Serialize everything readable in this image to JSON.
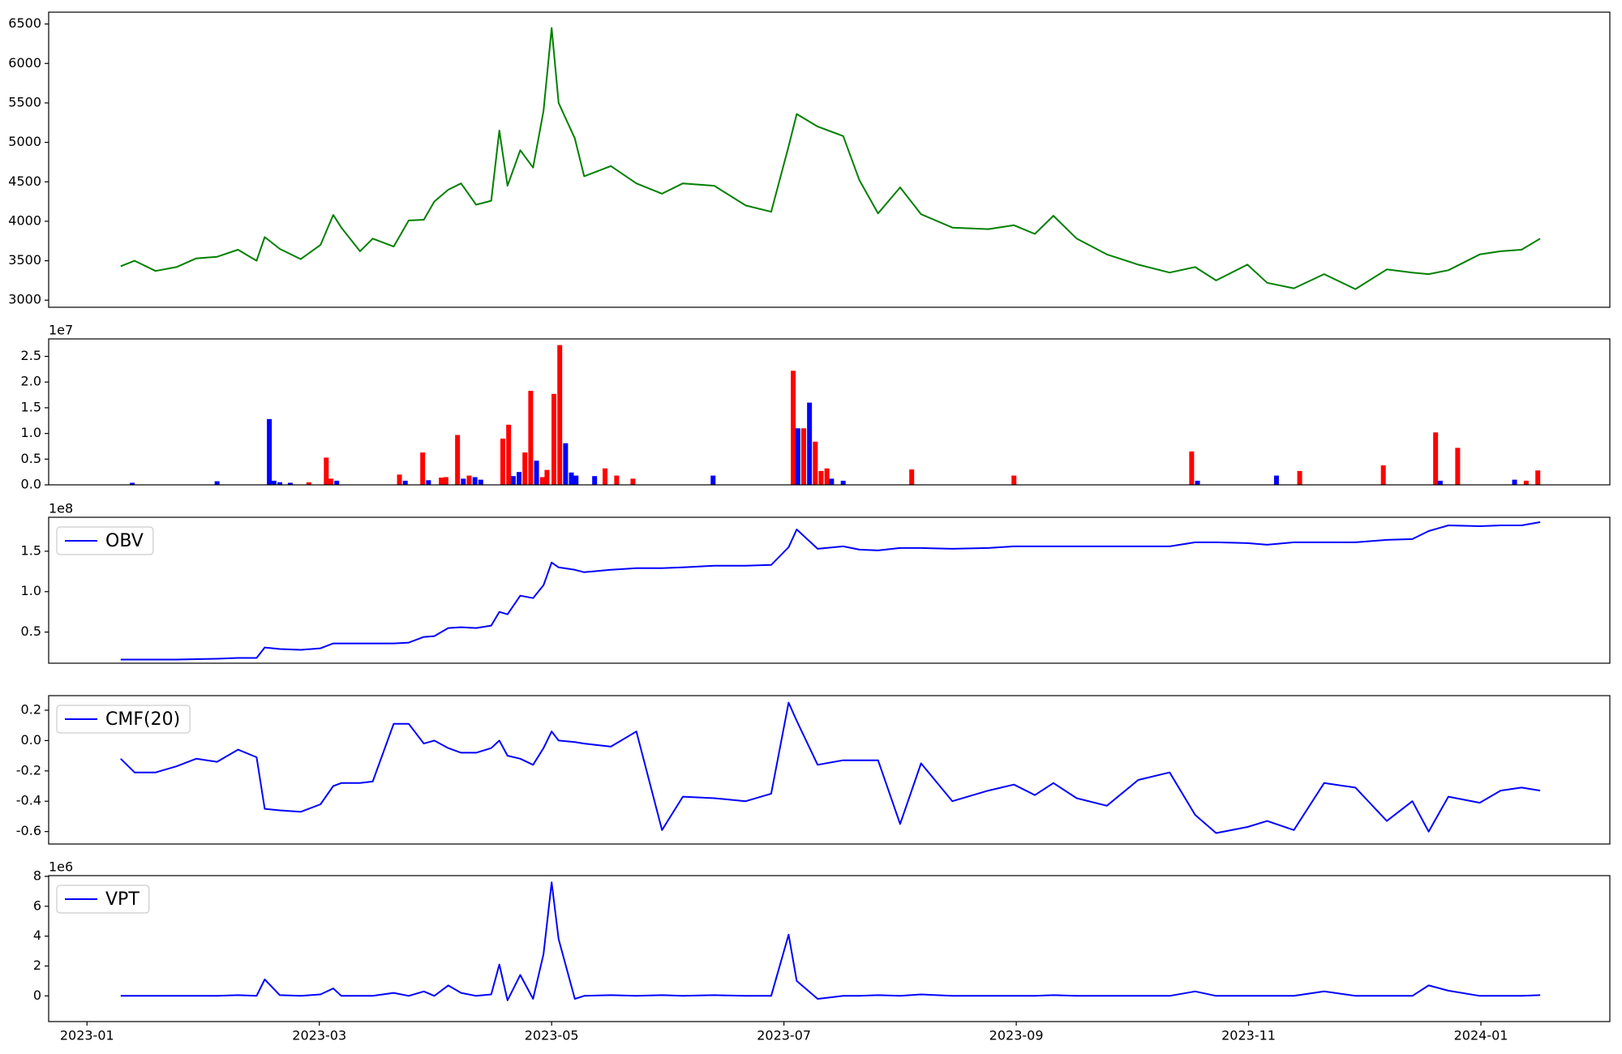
{
  "chart_data": [
    {
      "type": "line",
      "color": "green",
      "x": [
        0.29,
        0.41,
        0.59,
        0.77,
        0.94,
        1.12,
        1.3,
        1.46,
        1.53,
        1.66,
        1.84,
        2.01,
        2.12,
        2.19,
        2.35,
        2.46,
        2.64,
        2.77,
        2.9,
        2.99,
        3.11,
        3.22,
        3.35,
        3.48,
        3.55,
        3.62,
        3.73,
        3.84,
        3.93,
        4.0,
        4.06,
        4.2,
        4.28,
        4.51,
        4.73,
        4.95,
        5.13,
        5.4,
        5.67,
        5.89,
        6.04,
        6.11,
        6.29,
        6.51,
        6.65,
        6.81,
        7.0,
        7.18,
        7.45,
        7.76,
        7.98,
        8.16,
        8.32,
        8.52,
        8.78,
        9.05,
        9.32,
        9.54,
        9.72,
        9.99,
        10.16,
        10.39,
        10.65,
        10.92,
        11.19,
        11.41,
        11.55,
        11.72,
        11.99,
        12.17,
        12.35,
        12.51
      ],
      "values": [
        3430,
        3500,
        3370,
        3420,
        3530,
        3550,
        3640,
        3500,
        3800,
        3650,
        3520,
        3700,
        4080,
        3920,
        3620,
        3780,
        3680,
        4010,
        4020,
        4250,
        4400,
        4480,
        4210,
        4260,
        5150,
        4450,
        4900,
        4680,
        5400,
        6450,
        5500,
        5050,
        4570,
        4700,
        4480,
        4350,
        4480,
        4450,
        4200,
        4120,
        4950,
        5360,
        5200,
        5080,
        4520,
        4100,
        4430,
        4090,
        3920,
        3900,
        3950,
        3840,
        4070,
        3780,
        3580,
        3450,
        3350,
        3420,
        3250,
        3450,
        3220,
        3150,
        3330,
        3140,
        3390,
        3350,
        3330,
        3380,
        3580,
        3620,
        3640,
        3780
      ],
      "xlim": [
        -0.33,
        13.11
      ],
      "ylim": [
        2910,
        6650
      ],
      "yticks": [
        3000,
        3500,
        4000,
        4500,
        5000,
        5500,
        6000,
        6500
      ]
    },
    {
      "type": "bar",
      "offset_label": "1e7",
      "x": [
        0.39,
        1.12,
        1.57,
        1.61,
        1.66,
        1.75,
        1.91,
        2.06,
        2.1,
        2.15,
        2.69,
        2.74,
        2.89,
        2.94,
        3.05,
        3.09,
        3.19,
        3.24,
        3.29,
        3.34,
        3.39,
        3.58,
        3.63,
        3.67,
        3.72,
        3.77,
        3.82,
        3.87,
        3.92,
        3.96,
        4.02,
        4.07,
        4.12,
        4.17,
        4.21,
        4.37,
        4.46,
        4.56,
        4.7,
        5.39,
        6.08,
        6.12,
        6.17,
        6.22,
        6.27,
        6.32,
        6.37,
        6.41,
        6.51,
        7.1,
        7.98,
        9.51,
        9.56,
        10.24,
        10.44,
        11.16,
        11.61,
        11.65,
        11.8,
        12.29,
        12.39,
        12.49
      ],
      "values": [
        0.04,
        0.07,
        1.28,
        0.08,
        0.05,
        0.04,
        0.05,
        0.53,
        0.12,
        0.08,
        0.2,
        0.08,
        0.63,
        0.09,
        0.14,
        0.15,
        0.97,
        0.12,
        0.18,
        0.15,
        0.1,
        0.9,
        1.17,
        0.17,
        0.25,
        0.63,
        1.83,
        0.47,
        0.15,
        0.29,
        1.77,
        2.72,
        0.81,
        0.24,
        0.18,
        0.17,
        0.32,
        0.18,
        0.12,
        0.18,
        2.22,
        1.1,
        1.1,
        1.6,
        0.84,
        0.27,
        0.32,
        0.12,
        0.08,
        0.3,
        0.18,
        0.65,
        0.08,
        0.18,
        0.27,
        0.38,
        1.02,
        0.08,
        0.72,
        0.1,
        0.08,
        0.28
      ],
      "colors": [
        "blue",
        "blue",
        "blue",
        "blue",
        "blue",
        "blue",
        "red",
        "red",
        "red",
        "blue",
        "red",
        "blue",
        "red",
        "blue",
        "red",
        "red",
        "red",
        "blue",
        "red",
        "blue",
        "blue",
        "red",
        "red",
        "blue",
        "blue",
        "red",
        "red",
        "blue",
        "red",
        "red",
        "red",
        "red",
        "blue",
        "blue",
        "blue",
        "blue",
        "red",
        "red",
        "red",
        "blue",
        "red",
        "blue",
        "red",
        "blue",
        "red",
        "red",
        "red",
        "blue",
        "blue",
        "red",
        "red",
        "red",
        "blue",
        "blue",
        "red",
        "red",
        "red",
        "blue",
        "red",
        "blue",
        "red",
        "red"
      ],
      "xlim": [
        -0.33,
        13.11
      ],
      "ylim": [
        0,
        2.84
      ],
      "yticks": [
        {
          "value": 0,
          "label": "0.0"
        },
        0.5,
        {
          "value": 1,
          "label": "1.0"
        },
        1.5,
        {
          "value": 2,
          "label": "2.0"
        },
        2.5
      ]
    },
    {
      "type": "line",
      "offset_label": "1e8",
      "legend": "upper left",
      "x": [
        0.29,
        0.41,
        0.59,
        0.77,
        0.94,
        1.12,
        1.3,
        1.46,
        1.53,
        1.66,
        1.84,
        2.01,
        2.12,
        2.19,
        2.35,
        2.46,
        2.64,
        2.77,
        2.9,
        2.99,
        3.11,
        3.22,
        3.35,
        3.48,
        3.55,
        3.62,
        3.73,
        3.84,
        3.93,
        4.0,
        4.06,
        4.2,
        4.28,
        4.51,
        4.73,
        4.95,
        5.13,
        5.4,
        5.67,
        5.89,
        6.04,
        6.11,
        6.29,
        6.51,
        6.65,
        6.81,
        7.0,
        7.18,
        7.45,
        7.76,
        7.98,
        8.16,
        8.32,
        8.52,
        8.78,
        9.05,
        9.32,
        9.54,
        9.72,
        9.99,
        10.16,
        10.39,
        10.65,
        10.92,
        11.19,
        11.41,
        11.55,
        11.72,
        11.99,
        12.17,
        12.35,
        12.51
      ],
      "series": [
        {
          "name": "OBV",
          "color": "blue",
          "values": [
            0.16,
            0.16,
            0.16,
            0.16,
            0.165,
            0.17,
            0.18,
            0.18,
            0.31,
            0.29,
            0.28,
            0.3,
            0.36,
            0.36,
            0.36,
            0.36,
            0.36,
            0.37,
            0.44,
            0.45,
            0.55,
            0.56,
            0.55,
            0.58,
            0.75,
            0.72,
            0.95,
            0.92,
            1.08,
            1.36,
            1.3,
            1.27,
            1.24,
            1.27,
            1.29,
            1.29,
            1.3,
            1.32,
            1.32,
            1.33,
            1.55,
            1.77,
            1.53,
            1.56,
            1.52,
            1.51,
            1.54,
            1.54,
            1.53,
            1.54,
            1.56,
            1.56,
            1.56,
            1.56,
            1.56,
            1.56,
            1.56,
            1.61,
            1.61,
            1.6,
            1.58,
            1.61,
            1.61,
            1.61,
            1.64,
            1.65,
            1.75,
            1.82,
            1.81,
            1.82,
            1.82,
            1.86
          ]
        }
      ],
      "xlim": [
        -0.33,
        13.11
      ],
      "ylim": [
        0.115,
        1.92
      ],
      "yticks": [
        0.5,
        {
          "value": 1,
          "label": "1.0"
        },
        1.5
      ]
    },
    {
      "type": "line",
      "legend": "upper left",
      "x": [
        0.29,
        0.41,
        0.59,
        0.77,
        0.94,
        1.12,
        1.3,
        1.46,
        1.53,
        1.66,
        1.84,
        2.01,
        2.12,
        2.19,
        2.35,
        2.46,
        2.64,
        2.77,
        2.9,
        2.99,
        3.11,
        3.22,
        3.35,
        3.48,
        3.55,
        3.62,
        3.73,
        3.84,
        3.93,
        4.0,
        4.06,
        4.2,
        4.28,
        4.51,
        4.73,
        4.95,
        5.13,
        5.4,
        5.67,
        5.89,
        6.04,
        6.11,
        6.29,
        6.51,
        6.65,
        6.81,
        7.0,
        7.18,
        7.45,
        7.76,
        7.98,
        8.16,
        8.32,
        8.52,
        8.78,
        9.05,
        9.32,
        9.54,
        9.72,
        9.99,
        10.16,
        10.39,
        10.65,
        10.92,
        11.19,
        11.41,
        11.55,
        11.72,
        11.99,
        12.17,
        12.35,
        12.51
      ],
      "series": [
        {
          "name": "CMF(20)",
          "color": "blue",
          "values": [
            -0.12,
            -0.21,
            -0.21,
            -0.17,
            -0.12,
            -0.14,
            -0.06,
            -0.11,
            -0.45,
            -0.46,
            -0.47,
            -0.42,
            -0.3,
            -0.28,
            -0.28,
            -0.27,
            0.11,
            0.11,
            -0.02,
            0.0,
            -0.05,
            -0.08,
            -0.08,
            -0.05,
            0.0,
            -0.1,
            -0.12,
            -0.16,
            -0.05,
            0.06,
            0.0,
            -0.01,
            -0.02,
            -0.04,
            0.06,
            -0.59,
            -0.37,
            -0.38,
            -0.4,
            -0.35,
            0.25,
            0.13,
            -0.16,
            -0.13,
            -0.13,
            -0.13,
            -0.55,
            -0.15,
            -0.4,
            -0.33,
            -0.29,
            -0.36,
            -0.28,
            -0.38,
            -0.43,
            -0.26,
            -0.21,
            -0.49,
            -0.61,
            -0.57,
            -0.53,
            -0.59,
            -0.28,
            -0.31,
            -0.53,
            -0.4,
            -0.6,
            -0.37,
            -0.41,
            -0.33,
            -0.31,
            -0.33
          ]
        }
      ],
      "xlim": [
        -0.33,
        13.11
      ],
      "ylim": [
        -0.682,
        0.296
      ],
      "yticks": [
        0.2,
        {
          "value": 0,
          "label": "0.0"
        },
        -0.2,
        -0.4,
        -0.6
      ]
    },
    {
      "type": "line",
      "offset_label": "1e6",
      "legend": "upper left",
      "x": [
        0.29,
        0.41,
        0.59,
        0.77,
        0.94,
        1.12,
        1.3,
        1.46,
        1.53,
        1.66,
        1.84,
        2.01,
        2.12,
        2.19,
        2.35,
        2.46,
        2.64,
        2.77,
        2.9,
        2.99,
        3.11,
        3.22,
        3.35,
        3.48,
        3.55,
        3.62,
        3.73,
        3.84,
        3.93,
        4.0,
        4.06,
        4.2,
        4.28,
        4.51,
        4.73,
        4.95,
        5.13,
        5.4,
        5.67,
        5.89,
        6.04,
        6.11,
        6.29,
        6.51,
        6.65,
        6.81,
        7.0,
        7.18,
        7.45,
        7.76,
        7.98,
        8.16,
        8.32,
        8.52,
        8.78,
        9.05,
        9.32,
        9.54,
        9.72,
        9.99,
        10.16,
        10.39,
        10.65,
        10.92,
        11.19,
        11.41,
        11.55,
        11.72,
        11.99,
        12.17,
        12.35,
        12.51
      ],
      "series": [
        {
          "name": "VPT",
          "color": "blue",
          "values": [
            0,
            0,
            0,
            0,
            0,
            0,
            0.05,
            0,
            1.1,
            0.05,
            0,
            0.1,
            0.5,
            0,
            0,
            0,
            0.2,
            0,
            0.3,
            0,
            0.7,
            0.2,
            0,
            0.1,
            2.1,
            -0.3,
            1.4,
            -0.2,
            2.8,
            7.6,
            3.8,
            -0.2,
            0,
            0.05,
            0,
            0.05,
            0,
            0.05,
            0,
            0,
            4.1,
            1.0,
            -0.2,
            0,
            0,
            0.05,
            0,
            0.1,
            0,
            0,
            0,
            0,
            0.05,
            0,
            0,
            0,
            0,
            0.3,
            0,
            0,
            0,
            0,
            0.3,
            0,
            0,
            0,
            0.7,
            0.35,
            0,
            0,
            0,
            0.05
          ]
        }
      ],
      "xlim": [
        -0.33,
        13.11
      ],
      "ylim": [
        -1.72,
        8.05
      ],
      "yticks": [
        0,
        2,
        4,
        6,
        8
      ],
      "xticks": [
        {
          "value": 0,
          "label": "2023-01"
        },
        {
          "value": 2,
          "label": "2023-03"
        },
        {
          "value": 4,
          "label": "2023-05"
        },
        {
          "value": 6,
          "label": "2023-07"
        },
        {
          "value": 8,
          "label": "2023-09"
        },
        {
          "value": 10,
          "label": "2023-11"
        },
        {
          "value": 12,
          "label": "2024-01"
        }
      ]
    }
  ]
}
